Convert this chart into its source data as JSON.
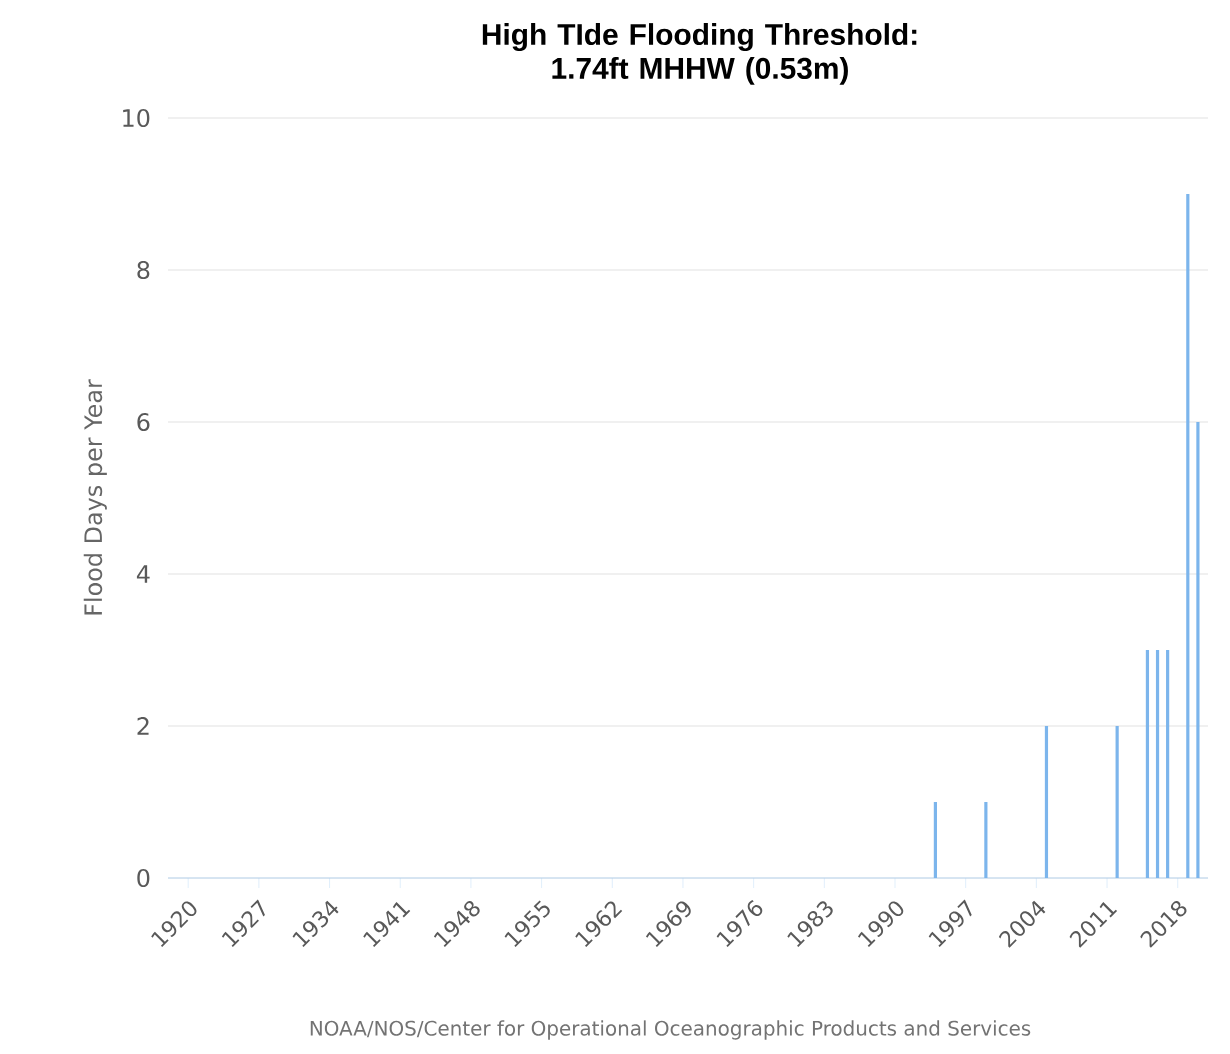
{
  "chart_data": {
    "type": "bar",
    "title": "High TIde Flooding Threshold: 1.74ft MHHW (0.53m)",
    "ylabel": "Flood Days per Year",
    "annotations": [
      "NOAA/NOS/Center for Operational Oceanographic Products and Services"
    ],
    "x": [
      1920,
      1921,
      1922,
      1923,
      1924,
      1925,
      1926,
      1927,
      1928,
      1929,
      1930,
      1931,
      1932,
      1933,
      1934,
      1935,
      1936,
      1937,
      1938,
      1939,
      1940,
      1941,
      1942,
      1943,
      1944,
      1945,
      1946,
      1947,
      1948,
      1949,
      1950,
      1951,
      1952,
      1953,
      1954,
      1955,
      1956,
      1957,
      1958,
      1959,
      1960,
      1961,
      1962,
      1963,
      1964,
      1965,
      1966,
      1967,
      1968,
      1969,
      1970,
      1971,
      1972,
      1973,
      1974,
      1975,
      1976,
      1977,
      1978,
      1979,
      1980,
      1981,
      1982,
      1983,
      1984,
      1985,
      1986,
      1987,
      1988,
      1989,
      1990,
      1991,
      1992,
      1993,
      1994,
      1995,
      1996,
      1997,
      1998,
      1999,
      2000,
      2001,
      2002,
      2003,
      2004,
      2005,
      2006,
      2007,
      2008,
      2009,
      2010,
      2011,
      2012,
      2013,
      2014,
      2015,
      2016,
      2017,
      2018,
      2019,
      2020
    ],
    "values": [
      0,
      0,
      0,
      0,
      0,
      0,
      0,
      0,
      0,
      0,
      0,
      0,
      0,
      0,
      0,
      0,
      0,
      0,
      0,
      0,
      0,
      0,
      0,
      0,
      0,
      0,
      0,
      0,
      0,
      0,
      0,
      0,
      0,
      0,
      0,
      0,
      0,
      0,
      0,
      0,
      0,
      0,
      0,
      0,
      0,
      0,
      0,
      0,
      0,
      0,
      0,
      0,
      0,
      0,
      0,
      0,
      0,
      0,
      0,
      0,
      0,
      0,
      0,
      0,
      0,
      0,
      0,
      0,
      0,
      0,
      0,
      0,
      0,
      0,
      1,
      0,
      0,
      0,
      0,
      1,
      0,
      0,
      0,
      0,
      0,
      2,
      0,
      0,
      0,
      0,
      0,
      0,
      2,
      0,
      0,
      3,
      3,
      3,
      0,
      9,
      6
    ],
    "color": "#7cb5ec",
    "xlim": [
      1918,
      2021
    ],
    "xticks": [
      1920,
      1927,
      1934,
      1941,
      1948,
      1955,
      1962,
      1969,
      1976,
      1983,
      1990,
      1997,
      2004,
      2011,
      2018
    ],
    "ylim": [
      0,
      10
    ],
    "yticks": [
      0,
      2,
      4,
      6,
      8,
      10
    ],
    "grid": "y"
  }
}
